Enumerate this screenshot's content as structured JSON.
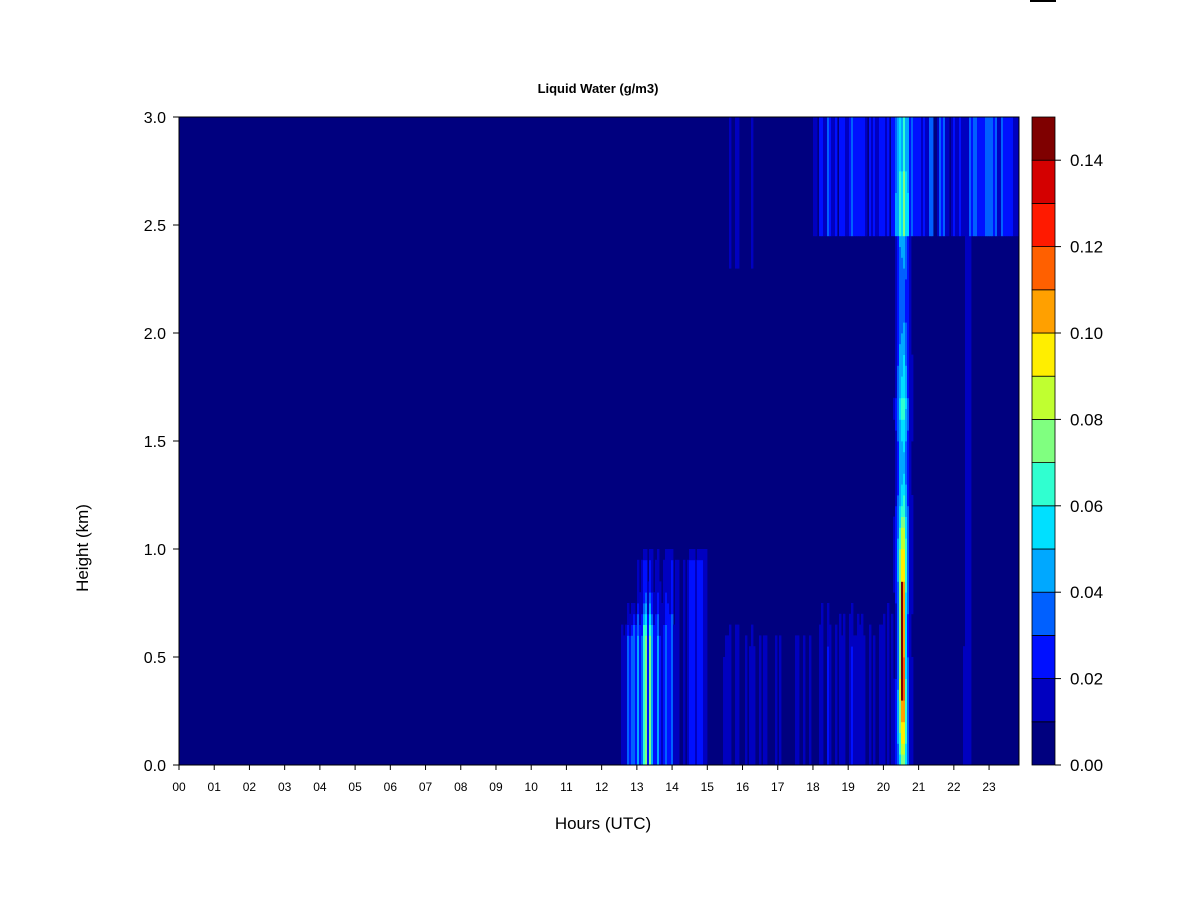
{
  "chart_data": {
    "type": "heatmap",
    "title": "Liquid Water (g/m3)",
    "xlabel": "Hours (UTC)",
    "ylabel": "Height (km)",
    "xlim": [
      0,
      23.85
    ],
    "ylim": [
      0,
      3.0
    ],
    "x_ticks": [
      "00",
      "01",
      "02",
      "03",
      "04",
      "05",
      "06",
      "07",
      "08",
      "09",
      "10",
      "11",
      "12",
      "13",
      "14",
      "15",
      "16",
      "17",
      "18",
      "19",
      "20",
      "21",
      "22",
      "23"
    ],
    "y_ticks": [
      "0.0",
      "0.5",
      "1.0",
      "1.5",
      "2.0",
      "2.5",
      "3.0"
    ],
    "colorbar": {
      "min": 0.0,
      "max": 0.15,
      "levels": [
        0.0,
        0.01,
        0.02,
        0.03,
        0.04,
        0.05,
        0.06,
        0.07,
        0.08,
        0.09,
        0.1,
        0.11,
        0.12,
        0.13,
        0.14,
        0.15
      ],
      "tick_labels": [
        "0.00",
        "0.02",
        "0.04",
        "0.06",
        "0.08",
        "0.10",
        "0.12",
        "0.14"
      ],
      "colors": [
        "#00007f",
        "#0000c0",
        "#0010ff",
        "#0060ff",
        "#00a8ff",
        "#00e0ff",
        "#30ffd0",
        "#80ff80",
        "#c0ff30",
        "#ffee00",
        "#ffa000",
        "#ff6000",
        "#ff1a00",
        "#d40000",
        "#7f0000"
      ]
    },
    "features": [
      {
        "time_start": 12.5,
        "time_end": 14.3,
        "height_top": 0.5,
        "peak": 0.05
      },
      {
        "time_start": 13.0,
        "time_end": 15.0,
        "height_top": 0.9,
        "peak": 0.02
      },
      {
        "time_start": 20.3,
        "time_end": 20.8,
        "height_top": 3.0,
        "peak": 0.045
      },
      {
        "time_start": 20.45,
        "time_end": 20.65,
        "height_top": 1.05,
        "peak": 0.09
      },
      {
        "time_start": 20.48,
        "time_end": 20.58,
        "height_top": 0.8,
        "peak": 0.15
      },
      {
        "time_start": 22.2,
        "time_end": 22.5,
        "height_top": 0.5,
        "peak": 0.04
      },
      {
        "time_start": 22.2,
        "time_end": 22.4,
        "height_top": 3.0,
        "peak": 0.03
      },
      {
        "time_start": 18.0,
        "time_end": 23.85,
        "height_bottom": 2.45,
        "height_top": 3.0,
        "peak": 0.02
      }
    ]
  }
}
